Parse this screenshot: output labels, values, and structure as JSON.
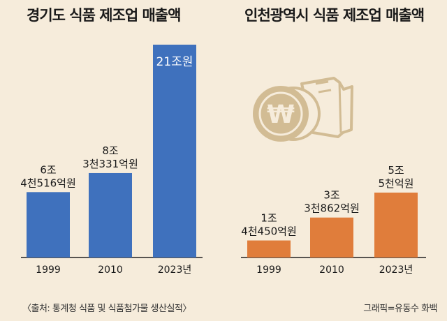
{
  "colors": {
    "background": "#f6ecdb",
    "left_bar": "#3f71bd",
    "right_bar": "#e07d3b",
    "icon": "#d2bc94"
  },
  "chart_data": [
    {
      "type": "bar",
      "title": "경기도 식품 제조업 매출액",
      "xlabel": "",
      "ylabel": "",
      "categories": [
        "1999",
        "2010",
        "2023년"
      ],
      "values": [
        6.4516,
        8.3331,
        21
      ],
      "unit": "조원",
      "data_labels": [
        [
          "6조",
          "4천516억원"
        ],
        [
          "8조",
          "3천331억원"
        ],
        [
          "21조원"
        ]
      ],
      "color": "#3f71bd"
    },
    {
      "type": "bar",
      "title": "인천광역시 식품 제조업 매출액",
      "xlabel": "",
      "ylabel": "",
      "categories": [
        "1999",
        "2010",
        "2023년"
      ],
      "values": [
        1.445,
        3.3862,
        5.5
      ],
      "unit": "조원",
      "data_labels": [
        [
          "1조",
          "4천450억원"
        ],
        [
          "3조",
          "3천862억원"
        ],
        [
          "5조",
          "5천억원"
        ]
      ],
      "color": "#e07d3b"
    }
  ],
  "icon": "won-coin-receipt-icon",
  "footer": {
    "source": "〈출처: 통계청 식품 및 식품첨가물 생산실적〉",
    "credit": "그래픽=유동수 화백"
  }
}
